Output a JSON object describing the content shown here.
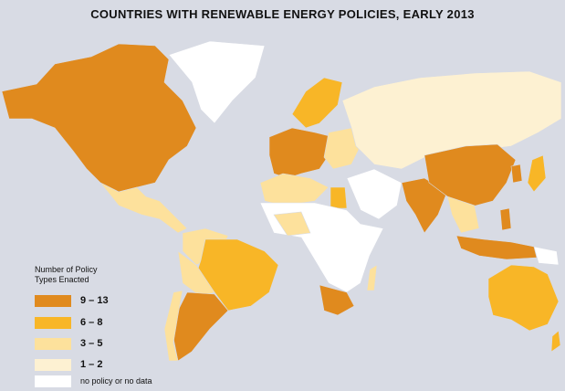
{
  "title": "COUNTRIES WITH RENEWABLE ENERGY POLICIES, EARLY 2013",
  "legend": {
    "title_lines": [
      "Number of Policy",
      "Types Enacted"
    ],
    "items": [
      {
        "label": "9 – 13",
        "color": "#e08a1e"
      },
      {
        "label": "6 – 8",
        "color": "#f8b627"
      },
      {
        "label": "3 – 5",
        "color": "#fde19c"
      },
      {
        "label": "1 – 2",
        "color": "#fdf1d2"
      },
      {
        "label": "no policy or no data",
        "color": "#ffffff"
      }
    ]
  }
}
